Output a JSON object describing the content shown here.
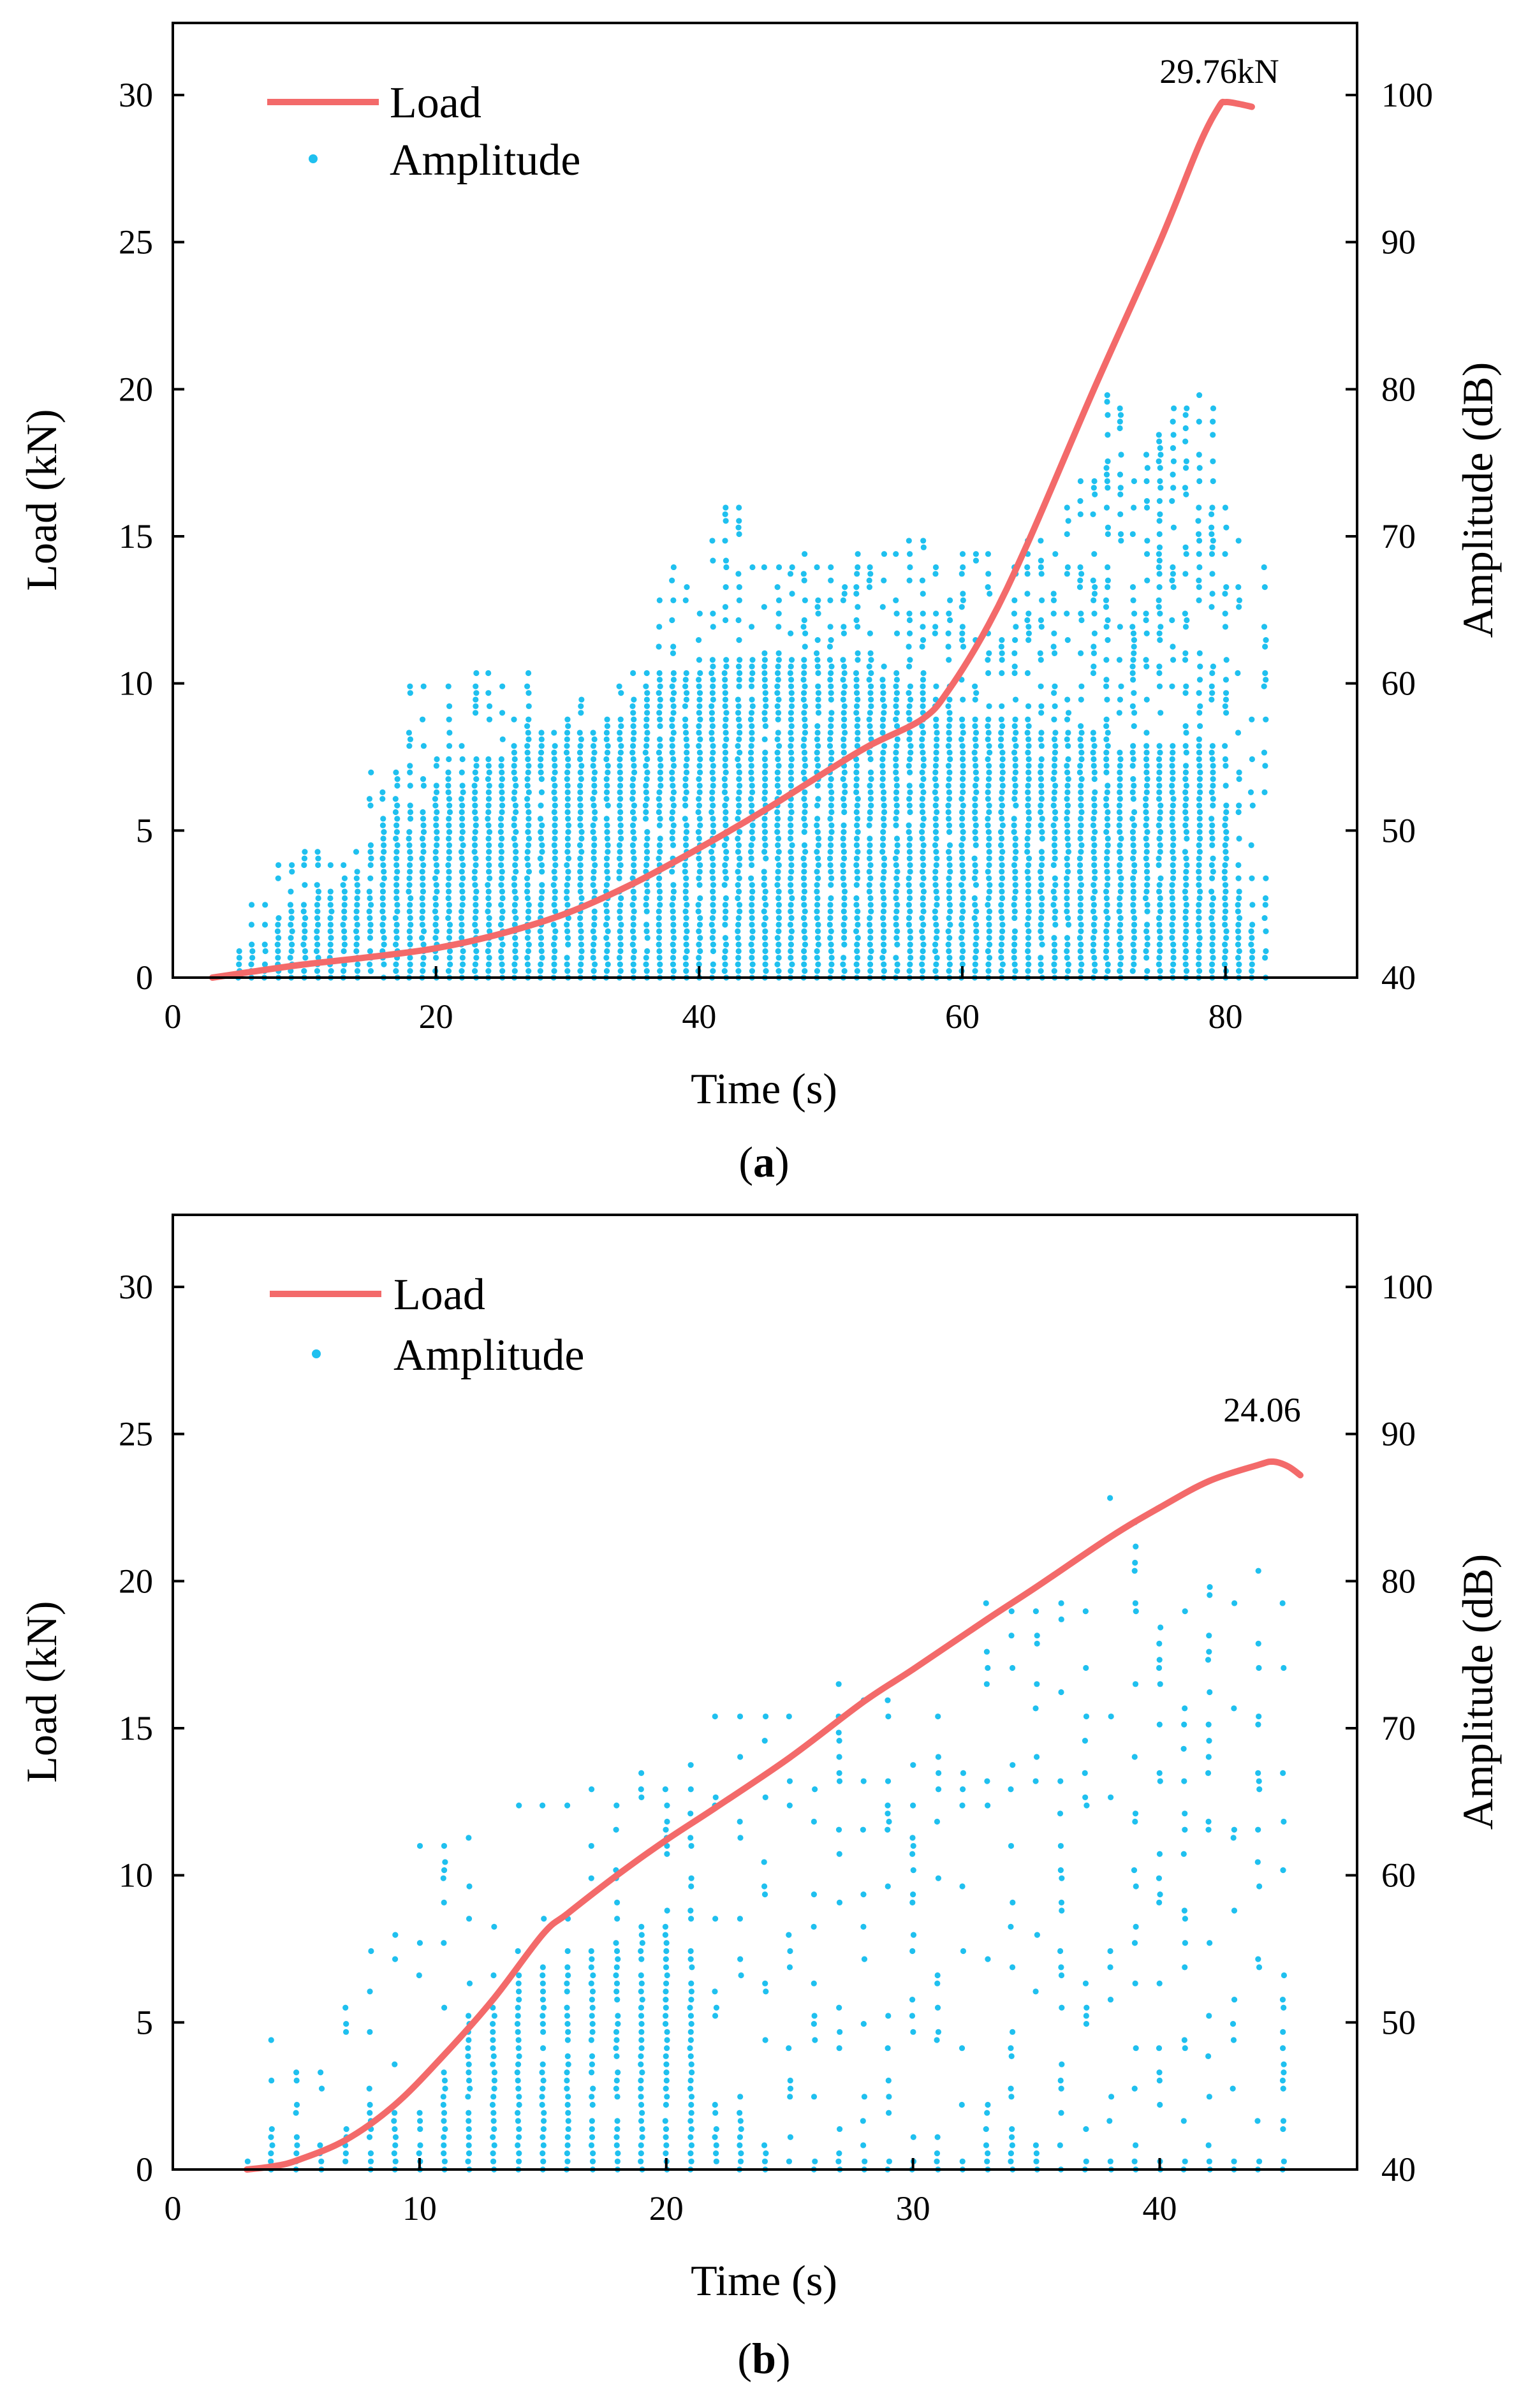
{
  "colors": {
    "load": "#f36a6a",
    "amplitude": "#1fc0ef",
    "axis": "#000000"
  },
  "chart_data": [
    {
      "type": "line+scatter",
      "panel_label": "(a)",
      "panel_letter": "a",
      "xlabel": "Time (s)",
      "ylabel": "Load (kN)",
      "y2label": "Amplitude (dB)",
      "xlim": [
        0,
        90
      ],
      "ylim": [
        0,
        32.45
      ],
      "y2lim": [
        40,
        104.9
      ],
      "xticks": [
        0,
        20,
        40,
        60,
        80
      ],
      "yticks": [
        0,
        5,
        10,
        15,
        20,
        25,
        30
      ],
      "y2ticks": [
        40,
        50,
        60,
        70,
        80,
        90,
        100
      ],
      "legend": {
        "position": "top-left",
        "entries": [
          "Load",
          "Amplitude"
        ]
      },
      "annotation": {
        "text": "29.76kN",
        "x": 80,
        "y": 29.76
      },
      "load_series": {
        "name": "Load",
        "points": [
          [
            3,
            0
          ],
          [
            6,
            0.2
          ],
          [
            10,
            0.45
          ],
          [
            15,
            0.7
          ],
          [
            20,
            1.0
          ],
          [
            25,
            1.5
          ],
          [
            30,
            2.2
          ],
          [
            35,
            3.2
          ],
          [
            40,
            4.4
          ],
          [
            45,
            5.7
          ],
          [
            50,
            7.1
          ],
          [
            53,
            7.9
          ],
          [
            57,
            8.8
          ],
          [
            59,
            9.8
          ],
          [
            62,
            12.0
          ],
          [
            65,
            14.8
          ],
          [
            70,
            20.0
          ],
          [
            75,
            25.0
          ],
          [
            78,
            28.3
          ],
          [
            79.5,
            29.6
          ],
          [
            80,
            29.76
          ],
          [
            81,
            29.7
          ],
          [
            82,
            29.6
          ]
        ]
      },
      "amplitude_series": {
        "name": "Amplitude",
        "unit": "dB",
        "columns_t_max_densetop": [
          [
            5,
            42,
            41
          ],
          [
            6,
            45,
            42
          ],
          [
            7,
            45,
            42
          ],
          [
            8,
            48,
            44
          ],
          [
            9,
            48,
            45
          ],
          [
            10,
            49,
            45
          ],
          [
            11,
            49,
            46
          ],
          [
            12,
            48,
            46
          ],
          [
            13,
            48,
            46
          ],
          [
            14,
            49,
            47
          ],
          [
            15,
            54,
            49
          ],
          [
            16,
            53,
            50
          ],
          [
            17,
            54,
            50
          ],
          [
            18,
            60,
            52
          ],
          [
            19,
            60,
            52
          ],
          [
            20,
            55,
            53
          ],
          [
            21,
            60,
            54
          ],
          [
            22,
            56,
            54
          ],
          [
            23,
            61,
            55
          ],
          [
            24,
            61,
            55
          ],
          [
            25,
            60,
            55
          ],
          [
            26,
            58,
            56
          ],
          [
            27,
            61,
            56
          ],
          [
            28,
            57,
            56
          ],
          [
            29,
            57,
            56
          ],
          [
            30,
            58,
            57
          ],
          [
            31,
            59,
            57
          ],
          [
            32,
            57,
            57
          ],
          [
            33,
            58,
            58
          ],
          [
            34,
            60,
            58
          ],
          [
            35,
            61,
            59
          ],
          [
            36,
            61,
            60
          ],
          [
            37,
            66,
            60
          ],
          [
            38,
            68,
            61
          ],
          [
            39,
            67,
            61
          ],
          [
            40,
            65,
            61
          ],
          [
            41,
            70,
            62
          ],
          [
            42,
            72,
            62
          ],
          [
            43,
            72,
            62
          ],
          [
            44,
            68,
            62
          ],
          [
            45,
            68,
            62
          ],
          [
            46,
            68,
            62
          ],
          [
            47,
            68,
            62
          ],
          [
            48,
            69,
            62
          ],
          [
            49,
            68,
            62
          ],
          [
            50,
            68,
            62
          ],
          [
            51,
            67,
            61
          ],
          [
            52,
            69,
            61
          ],
          [
            53,
            68,
            61
          ],
          [
            54,
            69,
            61
          ],
          [
            55,
            69,
            60
          ],
          [
            56,
            70,
            60
          ],
          [
            57,
            70,
            60
          ],
          [
            58,
            68,
            59
          ],
          [
            59,
            66,
            59
          ],
          [
            60,
            69,
            58
          ],
          [
            61,
            69,
            58
          ],
          [
            62,
            69,
            58
          ],
          [
            63,
            63,
            58
          ],
          [
            64,
            68,
            58
          ],
          [
            65,
            70,
            58
          ],
          [
            66,
            70,
            57
          ],
          [
            67,
            69,
            57
          ],
          [
            68,
            72,
            57
          ],
          [
            69,
            74,
            57
          ],
          [
            70,
            74,
            57
          ],
          [
            71,
            80,
            57
          ],
          [
            72,
            79,
            56
          ],
          [
            73,
            74,
            56
          ],
          [
            74,
            76,
            56
          ],
          [
            75,
            77,
            56
          ],
          [
            76,
            79,
            56
          ],
          [
            77,
            79,
            56
          ],
          [
            78,
            80,
            56
          ],
          [
            79,
            79,
            55
          ],
          [
            80,
            72,
            52
          ],
          [
            81,
            70,
            46
          ],
          [
            82,
            58,
            44
          ],
          [
            83,
            68,
            42
          ]
        ]
      }
    },
    {
      "type": "line+scatter",
      "panel_label": "(b)",
      "panel_letter": "b",
      "xlabel": "Time (s)",
      "ylabel": "Load (kN)",
      "y2label": "Amplitude (dB)",
      "xlim": [
        0,
        48
      ],
      "ylim": [
        0,
        32.45
      ],
      "y2lim": [
        40,
        104.9
      ],
      "xticks": [
        0,
        10,
        20,
        30,
        40
      ],
      "yticks": [
        0,
        5,
        10,
        15,
        20,
        25,
        30
      ],
      "y2ticks": [
        40,
        50,
        60,
        70,
        80,
        90,
        100
      ],
      "legend": {
        "position": "top-left",
        "entries": [
          "Load",
          "Amplitude"
        ]
      },
      "annotation": {
        "text": "24.06",
        "x": 44.5,
        "y": 24.06
      },
      "load_series": {
        "name": "Load",
        "points": [
          [
            3,
            0
          ],
          [
            4,
            0.1
          ],
          [
            5,
            0.3
          ],
          [
            7,
            1.0
          ],
          [
            9,
            2.2
          ],
          [
            11,
            3.9
          ],
          [
            13,
            5.8
          ],
          [
            15,
            8.0
          ],
          [
            16,
            8.7
          ],
          [
            18,
            10.0
          ],
          [
            20,
            11.2
          ],
          [
            22,
            12.3
          ],
          [
            25,
            14.0
          ],
          [
            28,
            15.9
          ],
          [
            30,
            17.0
          ],
          [
            33,
            18.7
          ],
          [
            35,
            19.8
          ],
          [
            38,
            21.5
          ],
          [
            40,
            22.5
          ],
          [
            42,
            23.4
          ],
          [
            44,
            23.95
          ],
          [
            44.6,
            24.06
          ],
          [
            45.2,
            23.9
          ],
          [
            45.7,
            23.6
          ]
        ]
      },
      "amplitude_series": {
        "name": "Amplitude",
        "unit": "dB",
        "columns_t_max_densetop": [
          [
            3,
            41,
            40
          ],
          [
            4,
            49,
            43
          ],
          [
            5,
            47,
            42
          ],
          [
            6,
            47,
            42
          ],
          [
            7,
            51,
            43
          ],
          [
            8,
            55,
            44
          ],
          [
            9,
            56,
            44
          ],
          [
            10,
            62,
            44
          ],
          [
            11,
            62,
            47
          ],
          [
            12,
            63,
            50
          ],
          [
            13,
            57,
            52
          ],
          [
            14,
            65,
            53
          ],
          [
            15,
            65,
            54
          ],
          [
            16,
            65,
            55
          ],
          [
            17,
            66,
            55
          ],
          [
            18,
            65,
            56
          ],
          [
            19,
            67,
            57
          ],
          [
            20,
            66,
            57
          ],
          [
            21,
            68,
            55
          ],
          [
            22,
            71,
            44
          ],
          [
            23,
            71,
            44
          ],
          [
            24,
            71,
            42
          ],
          [
            25,
            71,
            41
          ],
          [
            26,
            66,
            41
          ],
          [
            27,
            73,
            41
          ],
          [
            28,
            72,
            41
          ],
          [
            29,
            72,
            41
          ],
          [
            30,
            68,
            41
          ],
          [
            31,
            71,
            41
          ],
          [
            32,
            67,
            41
          ],
          [
            33,
            79,
            42
          ],
          [
            34,
            78,
            43
          ],
          [
            35,
            78,
            42
          ],
          [
            36,
            79,
            41
          ],
          [
            37,
            78,
            41
          ],
          [
            38,
            86,
            41
          ],
          [
            39,
            84,
            41
          ],
          [
            40,
            77,
            41
          ],
          [
            41,
            78,
            41
          ],
          [
            42,
            80,
            41
          ],
          [
            43,
            79,
            41
          ],
          [
            44,
            81,
            41
          ],
          [
            45,
            79,
            41
          ]
        ]
      }
    }
  ]
}
